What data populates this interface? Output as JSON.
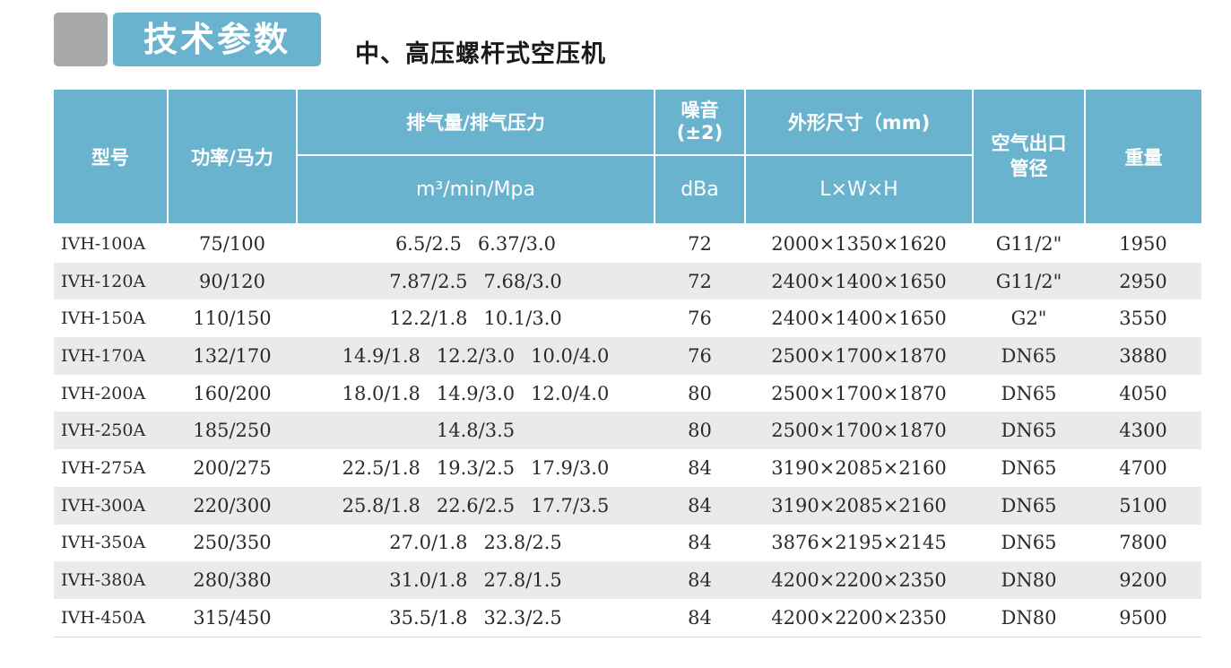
{
  "header": {
    "section_title": "技术参数",
    "subtitle": "中、高压螺杆式空压机"
  },
  "table": {
    "columns": {
      "model": "型号",
      "power": "功率/马力",
      "flow": "排气量/排气压力",
      "flow_unit": "m³/min/Mpa",
      "noise": "噪音\n(±2)",
      "noise_unit": "dBa",
      "dims": "外形尺寸（mm)",
      "dims_unit": "L×W×H",
      "outlet": "空气出口\n管径",
      "weight": "重量"
    },
    "rows": [
      {
        "model": "IVH-100A",
        "power": "75/100",
        "flow": [
          "6.5/2.5",
          "6.37/3.0"
        ],
        "noise": "72",
        "dims": "2000×1350×1620",
        "outlet": "G11/2\"",
        "weight": "1950"
      },
      {
        "model": "IVH-120A",
        "power": "90/120",
        "flow": [
          "7.87/2.5",
          "7.68/3.0"
        ],
        "noise": "72",
        "dims": "2400×1400×1650",
        "outlet": "G11/2\"",
        "weight": "2950"
      },
      {
        "model": "IVH-150A",
        "power": "110/150",
        "flow": [
          "12.2/1.8",
          "10.1/3.0"
        ],
        "noise": "76",
        "dims": "2400×1400×1650",
        "outlet": "G2\"",
        "weight": "3550"
      },
      {
        "model": "IVH-170A",
        "power": "132/170",
        "flow": [
          "14.9/1.8",
          "12.2/3.0",
          "10.0/4.0"
        ],
        "noise": "76",
        "dims": "2500×1700×1870",
        "outlet": "DN65",
        "weight": "3880"
      },
      {
        "model": "IVH-200A",
        "power": "160/200",
        "flow": [
          "18.0/1.8",
          "14.9/3.0",
          "12.0/4.0"
        ],
        "noise": "80",
        "dims": "2500×1700×1870",
        "outlet": "DN65",
        "weight": "4050"
      },
      {
        "model": "IVH-250A",
        "power": "185/250",
        "flow": [
          "14.8/3.5"
        ],
        "noise": "80",
        "dims": "2500×1700×1870",
        "outlet": "DN65",
        "weight": "4300"
      },
      {
        "model": "IVH-275A",
        "power": "200/275",
        "flow": [
          "22.5/1.8",
          "19.3/2.5",
          "17.9/3.0"
        ],
        "noise": "84",
        "dims": "3190×2085×2160",
        "outlet": "DN65",
        "weight": "4700"
      },
      {
        "model": "IVH-300A",
        "power": "220/300",
        "flow": [
          "25.8/1.8",
          "22.6/2.5",
          "17.7/3.5"
        ],
        "noise": "84",
        "dims": "3190×2085×2160",
        "outlet": "DN65",
        "weight": "5100"
      },
      {
        "model": "IVH-350A",
        "power": "250/350",
        "flow": [
          "27.0/1.8",
          "23.8/2.5"
        ],
        "noise": "84",
        "dims": "3876×2195×2145",
        "outlet": "DN65",
        "weight": "7800"
      },
      {
        "model": "IVH-380A",
        "power": "280/380",
        "flow": [
          "31.0/1.8",
          "27.8/1.5"
        ],
        "noise": "84",
        "dims": "4200×2200×2350",
        "outlet": "DN80",
        "weight": "9200"
      },
      {
        "model": "IVH-450A",
        "power": "315/450",
        "flow": [
          "35.5/1.8",
          "32.3/2.5"
        ],
        "noise": "84",
        "dims": "4200×2200×2350",
        "outlet": "DN80",
        "weight": "9500"
      }
    ]
  },
  "colors": {
    "header_bg": "#6ab3cf",
    "stripe": "#e9eaec",
    "gray_block": "#a7a9ab"
  }
}
